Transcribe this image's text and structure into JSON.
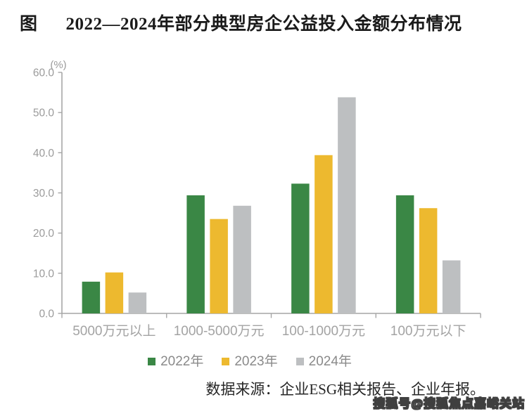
{
  "title": {
    "prefix": "图",
    "text": "2022—2024年部分典型房企公益投入金额分布情况"
  },
  "chart_data": {
    "type": "bar",
    "title": "2022—2024年部分典型房企公益投入金额分布情况",
    "unit_label": "(%)",
    "xlabel": "",
    "ylabel": "(%)",
    "categories": [
      "5000万元以上",
      "1000-5000万元",
      "100-1000万元",
      "100万元以下"
    ],
    "series": [
      {
        "name": "2022年",
        "color": "#3a8745",
        "values": [
          7.9,
          29.4,
          32.3,
          29.4
        ]
      },
      {
        "name": "2023年",
        "color": "#edb92f",
        "values": [
          10.2,
          23.5,
          39.4,
          26.2
        ]
      },
      {
        "name": "2024年",
        "color": "#bdbfc1",
        "values": [
          5.2,
          26.8,
          53.8,
          13.2
        ]
      }
    ],
    "ylim": [
      0,
      60
    ],
    "ytick_step": 10,
    "ytick_labels": [
      "0.0",
      "10.0",
      "20.0",
      "30.0",
      "40.0",
      "50.0",
      "60.0"
    ],
    "grid": false,
    "legend_position": "bottom",
    "axis_color": "#a6a6a6",
    "tick_label_color": "#9b9b9b",
    "category_label_color": "#a3a3a3"
  },
  "source": {
    "text": "数据来源：企业ESG相关报告、企业年报。"
  },
  "watermark": {
    "text": "搜狐号@搜狐焦点嘉峪关站"
  }
}
